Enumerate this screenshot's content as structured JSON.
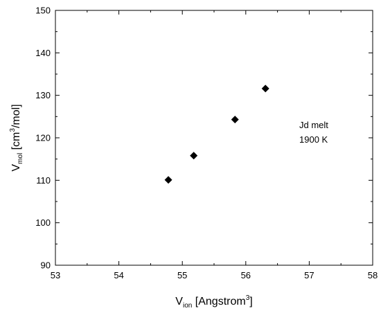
{
  "chart_data": {
    "type": "scatter",
    "x": [
      54.78,
      55.18,
      55.83,
      56.31
    ],
    "y": [
      110.1,
      115.8,
      124.3,
      131.6
    ],
    "xlim": [
      53,
      58
    ],
    "ylim": [
      90,
      150
    ],
    "xticks": [
      "53",
      "54",
      "55",
      "56",
      "57",
      "58"
    ],
    "yticks": [
      "90",
      "100",
      "110",
      "120",
      "130",
      "140",
      "150"
    ],
    "xlabel": {
      "main": "V",
      "sub": "ion",
      "rest": " [Angstrom",
      "sup": "3",
      "end": "]"
    },
    "ylabel": {
      "main": "V",
      "sub": "mol",
      "rest": " [cm",
      "sup": "3",
      "end": "/mol]"
    },
    "annotations": [
      "Jd melt",
      "1900 K"
    ],
    "marker": "diamond",
    "marker_color": "#000000",
    "grid": false,
    "legend": "none"
  }
}
